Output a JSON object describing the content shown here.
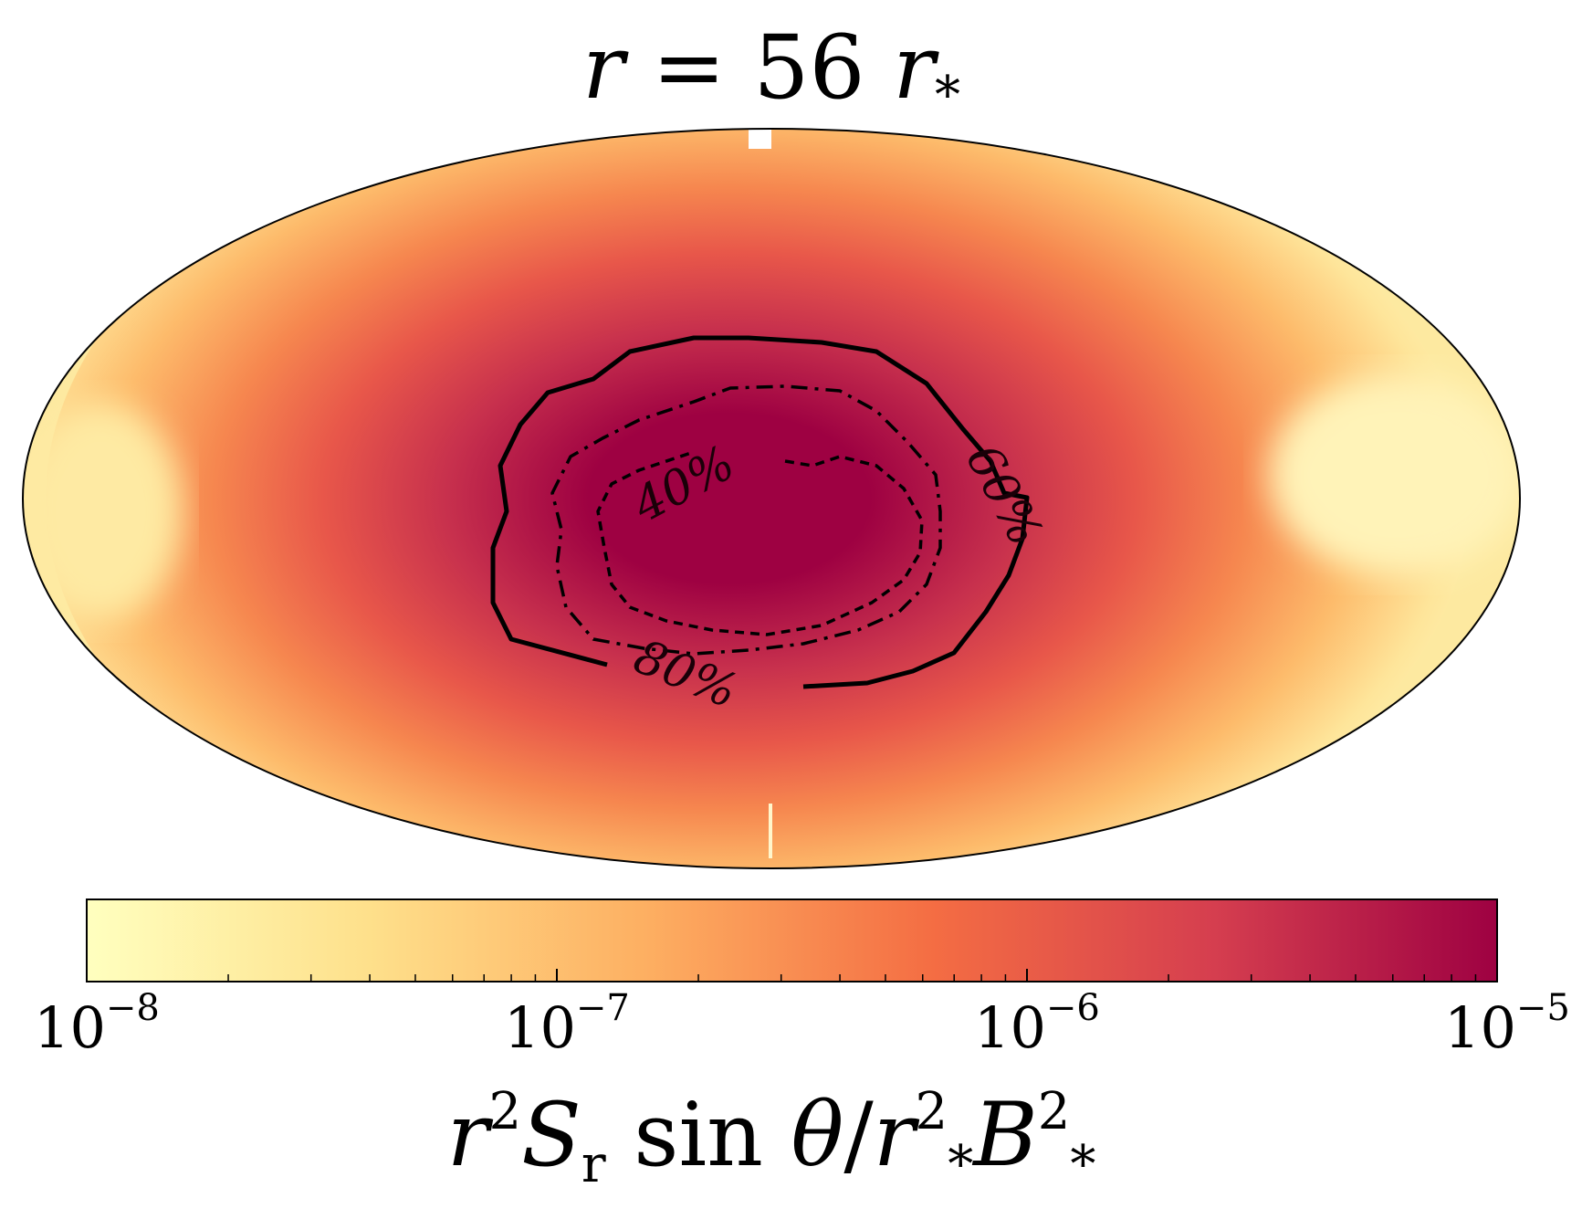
{
  "chart_data": {
    "type": "heatmap",
    "projection": "mollweide",
    "title": {
      "var": "r",
      "eq": " = 56 ",
      "unit": "r",
      "unit_sub": "*"
    },
    "colormap": "Spectral_r (yellow to dark red)",
    "colors": [
      "#ffffbf",
      "#fee08b",
      "#fdae61",
      "#f46d43",
      "#d53e4f",
      "#9e0142"
    ],
    "scale": "log",
    "vmin": 1e-08,
    "vmax": 1e-05,
    "colorbar": {
      "ticks": [
        {
          "value": 1e-08,
          "base": "10",
          "exp": "−8"
        },
        {
          "value": 1e-07,
          "base": "10",
          "exp": "−7"
        },
        {
          "value": 1e-06,
          "base": "10",
          "exp": "−6"
        },
        {
          "value": 1e-05,
          "base": "10",
          "exp": "−5"
        }
      ],
      "label": {
        "a": "r",
        "a_sup": "2",
        "b": "S",
        "b_sub": "r",
        "c": " sin ",
        "d": "θ",
        "e": "/",
        "f": "r",
        "f_sup": "2",
        "f_sub": "*",
        "g": "B",
        "g_sup": "2",
        "g_sub": "*"
      }
    },
    "contours": [
      {
        "label": "40%",
        "style": "dashed"
      },
      {
        "label": "60%",
        "style": "dash-dot"
      },
      {
        "label": "80%",
        "style": "solid"
      }
    ],
    "grid": false
  }
}
